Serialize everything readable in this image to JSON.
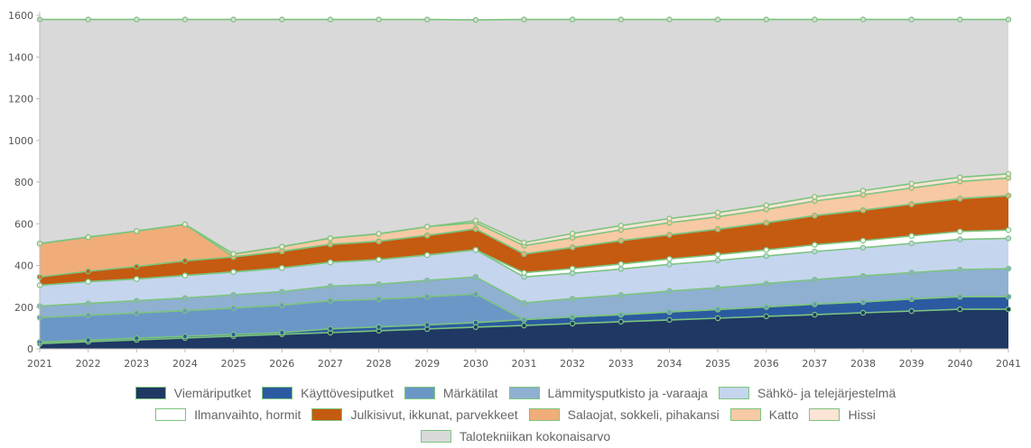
{
  "chart_data": {
    "type": "area",
    "stacked": true,
    "x": [
      "2021",
      "2022",
      "2023",
      "2024",
      "2025",
      "2026",
      "2027",
      "2028",
      "2029",
      "2030",
      "2031",
      "2032",
      "2033",
      "2034",
      "2035",
      "2036",
      "2037",
      "2038",
      "2039",
      "2040",
      "2041"
    ],
    "ylim": [
      0,
      1600
    ],
    "yticks": [
      0,
      200,
      400,
      600,
      800,
      1000,
      1200,
      1400,
      1600
    ],
    "grid": false,
    "legend_position": "bottom",
    "series": [
      {
        "name": "Viemäriputket",
        "color": "#1f3864",
        "values": [
          25,
          34,
          43,
          52,
          61,
          70,
          78,
          87,
          95,
          104,
          112,
          121,
          130,
          139,
          147,
          156,
          164,
          173,
          181,
          190,
          190
        ]
      },
      {
        "name": "Käyttövesiputket",
        "color": "#2c5aa0",
        "values": [
          8,
          8,
          8,
          8,
          8,
          8,
          18,
          18,
          20,
          22,
          28,
          32,
          34,
          38,
          42,
          45,
          50,
          52,
          58,
          60,
          60
        ]
      },
      {
        "name": "Märkätilat",
        "color": "#6b97c7",
        "values": [
          117,
          119,
          121,
          123,
          127,
          131,
          135,
          133,
          135,
          137,
          0,
          0,
          0,
          0,
          0,
          0,
          0,
          0,
          0,
          0,
          0
        ]
      },
      {
        "name": "Lämmitysputkisto ja -varaaja",
        "color": "#8fb0d1",
        "values": [
          55,
          57,
          59,
          61,
          63,
          65,
          70,
          72,
          78,
          82,
          80,
          88,
          94,
          100,
          104,
          112,
          118,
          125,
          127,
          130,
          135
        ]
      },
      {
        "name": "Sähkö- ja telejärjestelmä",
        "color": "#c5d5ee",
        "values": [
          100,
          104,
          104,
          108,
          110,
          114,
          114,
          118,
          122,
          130,
          125,
          122,
          125,
          128,
          131,
          132,
          135,
          135,
          140,
          145,
          145
        ]
      },
      {
        "name": "Ilmanvaihto, hormit",
        "color": "#ffffff",
        "values": [
          0,
          0,
          0,
          0,
          0,
          0,
          0,
          0,
          0,
          0,
          20,
          22,
          24,
          26,
          28,
          30,
          32,
          34,
          36,
          38,
          40
        ]
      },
      {
        "name": "Julkisivut, ikkunat, parvekkeet",
        "color": "#c55a11",
        "values": [
          40,
          50,
          60,
          70,
          72,
          80,
          86,
          88,
          94,
          100,
          90,
          102,
          112,
          116,
          122,
          130,
          140,
          146,
          152,
          158,
          165
        ]
      },
      {
        "name": "Salaojat, sokkeli, pihakansi",
        "color": "#f0ad7a",
        "values": [
          160,
          164,
          170,
          175,
          0,
          0,
          0,
          0,
          0,
          0,
          0,
          0,
          0,
          0,
          0,
          0,
          0,
          0,
          0,
          0,
          0
        ]
      },
      {
        "name": "Katto",
        "color": "#f7c9a4",
        "values": [
          0,
          0,
          0,
          0,
          14,
          22,
          30,
          36,
          42,
          30,
          40,
          46,
          52,
          58,
          60,
          64,
          70,
          74,
          78,
          82,
          85
        ]
      },
      {
        "name": "Hissi",
        "color": "#fce4d6",
        "values": [
          0,
          0,
          0,
          0,
          0,
          0,
          0,
          0,
          0,
          10,
          15,
          20,
          20,
          20,
          20,
          20,
          20,
          20,
          20,
          20,
          20
        ]
      },
      {
        "name": "Talotekniikan kokonaisarvo",
        "color": "#d9d9d9",
        "values": [
          1075,
          1044,
          1015,
          983,
          1125,
          1090,
          1049,
          1028,
          994,
          963,
          1070,
          1027,
          989,
          955,
          926,
          891,
          851,
          821,
          788,
          757,
          740
        ]
      }
    ]
  },
  "legend_rows": [
    [
      0,
      1,
      2,
      3,
      4
    ],
    [
      5,
      6,
      7,
      8,
      9
    ],
    [
      10
    ]
  ]
}
